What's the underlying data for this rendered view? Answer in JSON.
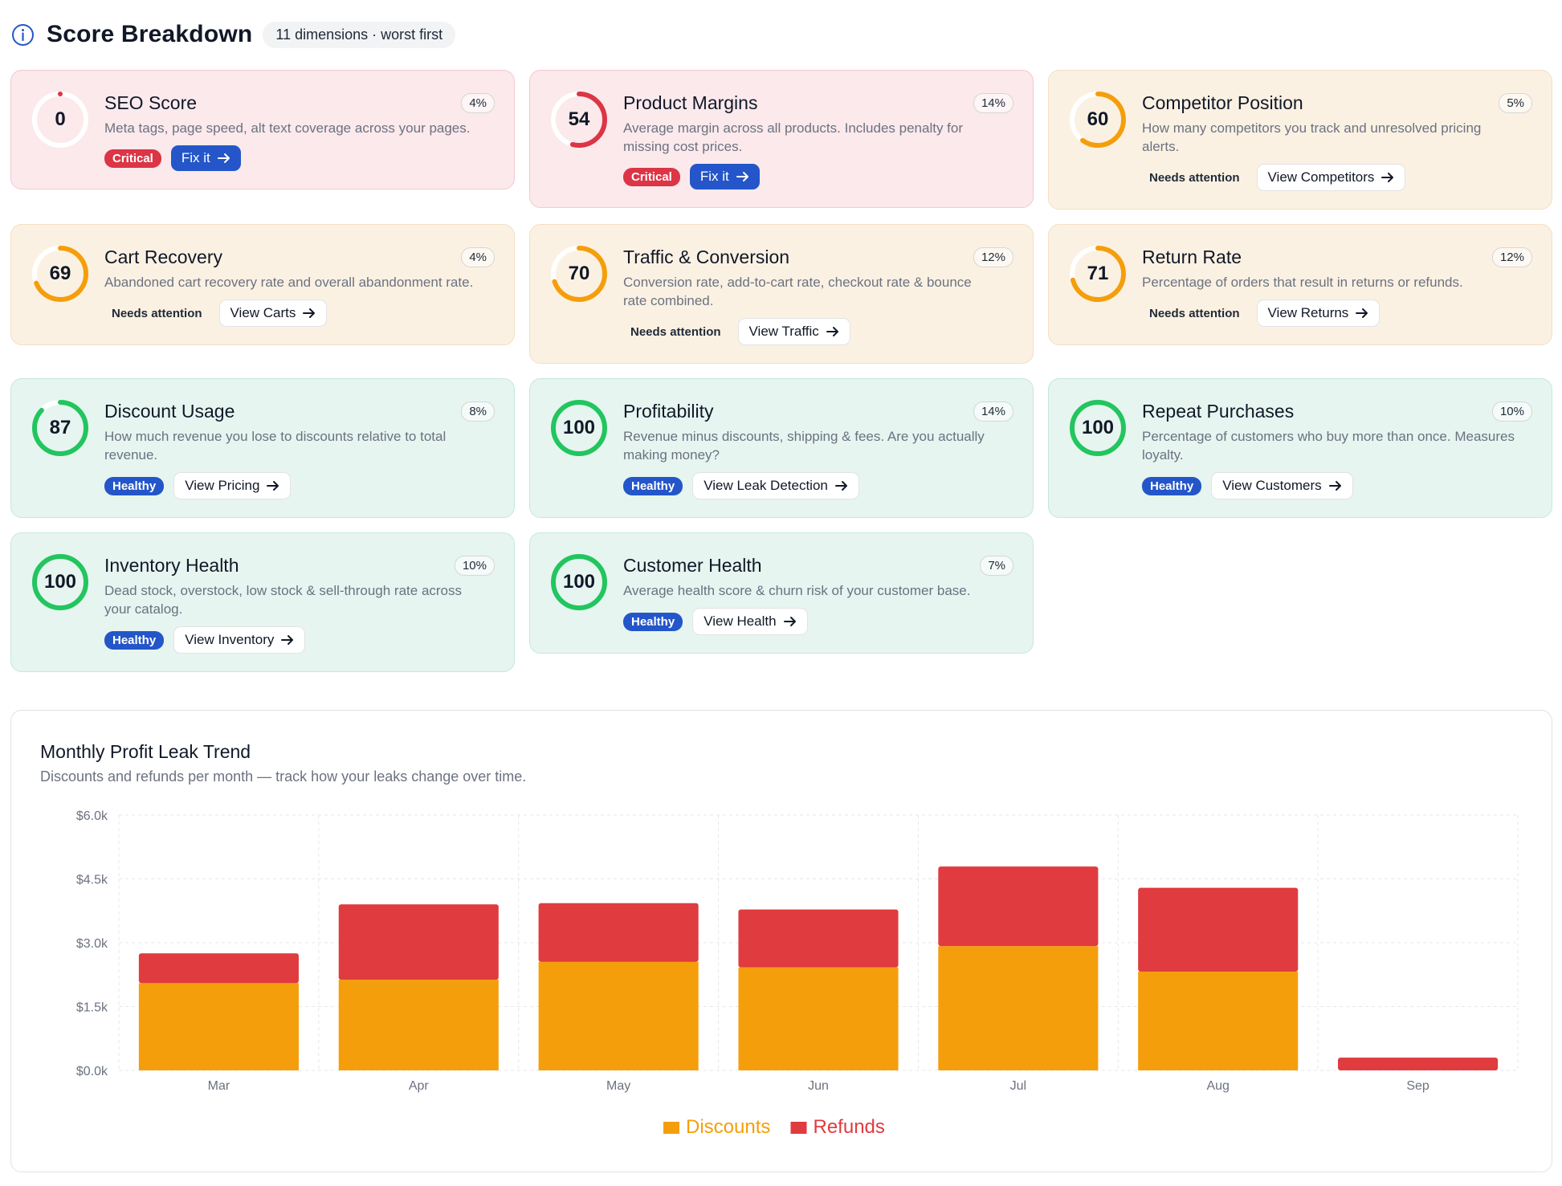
{
  "header": {
    "title": "Score Breakdown",
    "dimensions_pill": "11 dimensions · worst first"
  },
  "colors": {
    "critical_ring": "#dc3545",
    "attention_ring": "#f59e0b",
    "healthy_ring": "#22c55e",
    "primary_button": "#2456c9",
    "discounts": "#f59e0b",
    "refunds": "#e03b3f"
  },
  "cards": [
    {
      "score": 0,
      "title": "SEO Score",
      "weight": "4%",
      "desc": "Meta tags, page speed, alt text coverage across your pages.",
      "status": "Critical",
      "action": "Fix it",
      "kind": "critical"
    },
    {
      "score": 54,
      "title": "Product Margins",
      "weight": "14%",
      "desc": "Average margin across all products. Includes penalty for missing cost prices.",
      "status": "Critical",
      "action": "Fix it",
      "kind": "critical"
    },
    {
      "score": 60,
      "title": "Competitor Position",
      "weight": "5%",
      "desc": "How many competitors you track and unresolved pricing alerts.",
      "status": "Needs attention",
      "action": "View Competitors",
      "kind": "attention"
    },
    {
      "score": 69,
      "title": "Cart Recovery",
      "weight": "4%",
      "desc": "Abandoned cart recovery rate and overall abandonment rate.",
      "status": "Needs attention",
      "action": "View Carts",
      "kind": "attention"
    },
    {
      "score": 70,
      "title": "Traffic & Conversion",
      "weight": "12%",
      "desc": "Conversion rate, add-to-cart rate, checkout rate & bounce rate combined.",
      "status": "Needs attention",
      "action": "View Traffic",
      "kind": "attention"
    },
    {
      "score": 71,
      "title": "Return Rate",
      "weight": "12%",
      "desc": "Percentage of orders that result in returns or refunds.",
      "status": "Needs attention",
      "action": "View Returns",
      "kind": "attention"
    },
    {
      "score": 87,
      "title": "Discount Usage",
      "weight": "8%",
      "desc": "How much revenue you lose to discounts relative to total revenue.",
      "status": "Healthy",
      "action": "View Pricing",
      "kind": "healthy"
    },
    {
      "score": 100,
      "title": "Profitability",
      "weight": "14%",
      "desc": "Revenue minus discounts, shipping & fees. Are you actually making money?",
      "status": "Healthy",
      "action": "View Leak Detection",
      "kind": "healthy"
    },
    {
      "score": 100,
      "title": "Repeat Purchases",
      "weight": "10%",
      "desc": "Percentage of customers who buy more than once. Measures loyalty.",
      "status": "Healthy",
      "action": "View Customers",
      "kind": "healthy"
    },
    {
      "score": 100,
      "title": "Inventory Health",
      "weight": "10%",
      "desc": "Dead stock, overstock, low stock & sell-through rate across your catalog.",
      "status": "Healthy",
      "action": "View Inventory",
      "kind": "healthy"
    },
    {
      "score": 100,
      "title": "Customer Health",
      "weight": "7%",
      "desc": "Average health score & churn risk of your customer base.",
      "status": "Healthy",
      "action": "View Health",
      "kind": "healthy"
    }
  ],
  "trend": {
    "title": "Monthly Profit Leak Trend",
    "subtitle": "Discounts and refunds per month — track how your leaks change over time."
  },
  "chart_data": {
    "type": "bar",
    "stacked": true,
    "categories": [
      "Mar",
      "Apr",
      "May",
      "Jun",
      "Jul",
      "Aug",
      "Sep"
    ],
    "series": [
      {
        "name": "Discounts",
        "color": "#f59e0b",
        "values": [
          2050,
          2130,
          2550,
          2420,
          2920,
          2320,
          0
        ]
      },
      {
        "name": "Refunds",
        "color": "#e03b3f",
        "values": [
          700,
          1770,
          1380,
          1360,
          1870,
          1970,
          300
        ]
      }
    ],
    "yticks": [
      "$0.0k",
      "$1.5k",
      "$3.0k",
      "$4.5k",
      "$6.0k"
    ],
    "ylim": [
      0,
      6000
    ],
    "grid": true,
    "legend": "bottom"
  }
}
